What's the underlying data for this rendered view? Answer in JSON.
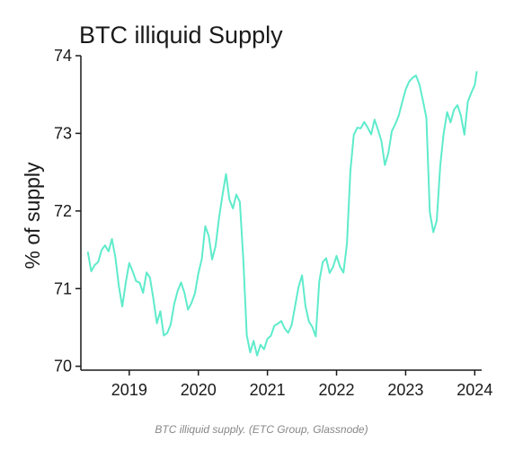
{
  "chart_data": {
    "type": "line",
    "title": "BTC illiquid Supply",
    "xlabel": "",
    "ylabel": "% of supply",
    "xlim": [
      2018.3,
      2024.1
    ],
    "ylim": [
      69.95,
      74.0
    ],
    "x_ticks": [
      2019,
      2020,
      2021,
      2022,
      2023,
      2024
    ],
    "x_tick_labels": [
      "2019",
      "2020",
      "2021",
      "2022",
      "2023",
      "2024"
    ],
    "y_ticks": [
      70,
      71,
      72,
      73,
      74
    ],
    "y_tick_labels": [
      "70",
      "71",
      "72",
      "73",
      "74"
    ],
    "grid": false,
    "line_color": "#5eebcb",
    "series": [
      {
        "x": [
          2018.4,
          2018.45,
          2018.5,
          2018.55,
          2018.6,
          2018.65,
          2018.7,
          2018.75,
          2018.8,
          2018.85,
          2018.9,
          2018.95,
          2019.0,
          2019.05,
          2019.1,
          2019.15,
          2019.2,
          2019.25,
          2019.3,
          2019.35,
          2019.4,
          2019.45,
          2019.5,
          2019.55,
          2019.6,
          2019.65,
          2019.7,
          2019.75,
          2019.8,
          2019.85,
          2019.9,
          2019.95,
          2020.0,
          2020.05,
          2020.1,
          2020.15,
          2020.2,
          2020.25,
          2020.3,
          2020.35,
          2020.4,
          2020.45,
          2020.5,
          2020.55,
          2020.6,
          2020.65,
          2020.7,
          2020.75,
          2020.8,
          2020.85,
          2020.9,
          2020.95,
          2021.0,
          2021.05,
          2021.1,
          2021.15,
          2021.2,
          2021.25,
          2021.3,
          2021.35,
          2021.4,
          2021.45,
          2021.5,
          2021.55,
          2021.6,
          2021.65,
          2021.7,
          2021.75,
          2021.8,
          2021.85,
          2021.9,
          2021.95,
          2022.0,
          2022.05,
          2022.1,
          2022.15,
          2022.2,
          2022.25,
          2022.3,
          2022.35,
          2022.4,
          2022.45,
          2022.5,
          2022.55,
          2022.6,
          2022.65,
          2022.7,
          2022.75,
          2022.8,
          2022.85,
          2022.9,
          2022.95,
          2023.0,
          2023.05,
          2023.1,
          2023.15,
          2023.2,
          2023.25,
          2023.3,
          2023.35,
          2023.4,
          2023.45,
          2023.5,
          2023.55,
          2023.6,
          2023.65,
          2023.7,
          2023.75,
          2023.8,
          2023.85,
          2023.9,
          2023.95,
          2024.0,
          2024.03
        ],
        "values": [
          71.45,
          71.25,
          71.3,
          71.35,
          71.5,
          71.55,
          71.5,
          71.65,
          71.4,
          71.0,
          70.75,
          71.1,
          71.3,
          71.2,
          71.1,
          71.05,
          70.95,
          71.2,
          71.15,
          70.85,
          70.55,
          70.7,
          70.4,
          70.45,
          70.55,
          70.8,
          71.0,
          71.1,
          70.95,
          70.7,
          70.8,
          70.95,
          71.2,
          71.4,
          71.8,
          71.65,
          71.35,
          71.55,
          71.9,
          72.2,
          72.45,
          72.15,
          72.05,
          72.2,
          72.1,
          71.4,
          70.4,
          70.2,
          70.35,
          70.15,
          70.3,
          70.2,
          70.35,
          70.4,
          70.5,
          70.55,
          70.6,
          70.5,
          70.45,
          70.55,
          70.8,
          71.0,
          71.2,
          70.8,
          70.6,
          70.5,
          70.4,
          71.1,
          71.35,
          71.4,
          71.2,
          71.3,
          71.45,
          71.3,
          71.2,
          71.6,
          72.5,
          73.0,
          73.1,
          73.05,
          73.15,
          73.1,
          73.0,
          73.2,
          73.05,
          72.9,
          72.6,
          72.75,
          73.0,
          73.1,
          73.25,
          73.4,
          73.55,
          73.65,
          73.7,
          73.72,
          73.65,
          73.45,
          73.2,
          72.0,
          71.7,
          71.9,
          72.6,
          73.0,
          73.25,
          73.15,
          73.3,
          73.35,
          73.2,
          73.0,
          73.4,
          73.55,
          73.65,
          73.8
        ]
      }
    ],
    "caption": "BTC illiquid supply. (ETC Group, Glassnode)"
  }
}
